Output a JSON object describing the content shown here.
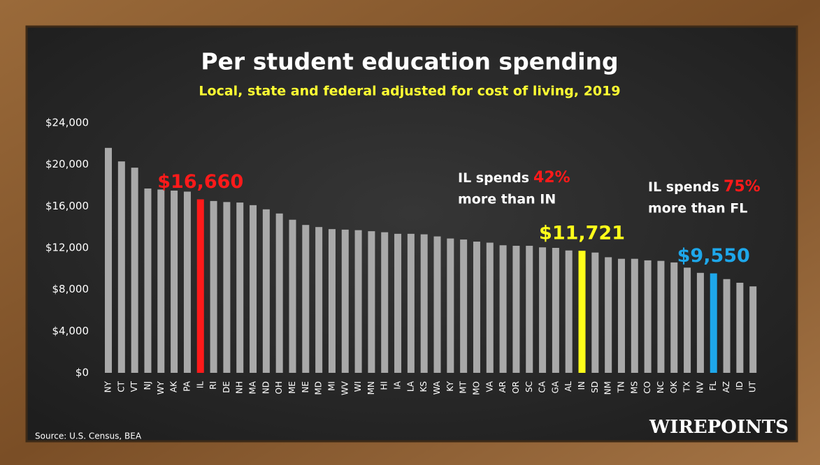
{
  "chart_data": {
    "type": "bar",
    "title": "Per student education spending",
    "subtitle": "Local, state and federal adjusted for cost of living, 2019",
    "categories": [
      "NY",
      "CT",
      "VT",
      "NJ",
      "WY",
      "AK",
      "PA",
      "IL",
      "RI",
      "DE",
      "NH",
      "MA",
      "ND",
      "OH",
      "ME",
      "NE",
      "MD",
      "MI",
      "WV",
      "WI",
      "MN",
      "HI",
      "IA",
      "LA",
      "KS",
      "WA",
      "KY",
      "MT",
      "MO",
      "VA",
      "AR",
      "OR",
      "SC",
      "CA",
      "GA",
      "AL",
      "IN",
      "SD",
      "NM",
      "TN",
      "MS",
      "CO",
      "NC",
      "OK",
      "TX",
      "NV",
      "FL",
      "AZ",
      "ID",
      "UT"
    ],
    "values": [
      21600,
      20300,
      19700,
      17700,
      17600,
      17500,
      17400,
      16660,
      16500,
      16400,
      16350,
      16100,
      15700,
      15300,
      14700,
      14200,
      14000,
      13800,
      13750,
      13700,
      13600,
      13500,
      13350,
      13350,
      13300,
      13100,
      12900,
      12800,
      12600,
      12500,
      12250,
      12200,
      12200,
      12050,
      12000,
      11750,
      11721,
      11550,
      11100,
      10950,
      10950,
      10800,
      10750,
      10600,
      10100,
      9600,
      9550,
      9000,
      8650,
      8300
    ],
    "value_labels": [
      null,
      null,
      null,
      null,
      null,
      null,
      null,
      "$16,660",
      null,
      null,
      null,
      null,
      null,
      null,
      null,
      null,
      null,
      null,
      null,
      null,
      null,
      null,
      null,
      null,
      null,
      null,
      null,
      null,
      null,
      null,
      null,
      null,
      null,
      null,
      null,
      null,
      "$11,721",
      null,
      null,
      null,
      null,
      null,
      null,
      null,
      null,
      null,
      "$9,550",
      null,
      null,
      null
    ],
    "colors": [
      "#a9a9a9",
      "#a9a9a9",
      "#a9a9a9",
      "#a9a9a9",
      "#a9a9a9",
      "#a9a9a9",
      "#a9a9a9",
      "#ff1a1a",
      "#a9a9a9",
      "#a9a9a9",
      "#a9a9a9",
      "#a9a9a9",
      "#a9a9a9",
      "#a9a9a9",
      "#a9a9a9",
      "#a9a9a9",
      "#a9a9a9",
      "#a9a9a9",
      "#a9a9a9",
      "#a9a9a9",
      "#a9a9a9",
      "#a9a9a9",
      "#a9a9a9",
      "#a9a9a9",
      "#a9a9a9",
      "#a9a9a9",
      "#a9a9a9",
      "#a9a9a9",
      "#a9a9a9",
      "#a9a9a9",
      "#a9a9a9",
      "#a9a9a9",
      "#a9a9a9",
      "#a9a9a9",
      "#a9a9a9",
      "#a9a9a9",
      "#ffff1a",
      "#a9a9a9",
      "#a9a9a9",
      "#a9a9a9",
      "#a9a9a9",
      "#a9a9a9",
      "#a9a9a9",
      "#a9a9a9",
      "#a9a9a9",
      "#a9a9a9",
      "#1ea7ea",
      "#a9a9a9",
      "#a9a9a9",
      "#a9a9a9"
    ],
    "ylim": [
      0,
      24000
    ],
    "yticks": [
      {
        "value": 0,
        "label": "$0"
      },
      {
        "value": 4000,
        "label": "$4,000"
      },
      {
        "value": 8000,
        "label": "$8,000"
      },
      {
        "value": 12000,
        "label": "$12,000"
      },
      {
        "value": 16000,
        "label": "$16,000"
      },
      {
        "value": 20000,
        "label": "$20,000"
      },
      {
        "value": 24000,
        "label": "$24,000"
      }
    ],
    "grid": false,
    "annotations": [
      {
        "prefix": "IL spends",
        "highlight": "42%",
        "suffix": "more than IN",
        "highlight_color": "#ff1a1a"
      },
      {
        "prefix": "IL spends",
        "highlight": "75%",
        "suffix": "more than FL",
        "highlight_color": "#ff1a1a"
      }
    ],
    "source": "Source: U.S. Census, BEA",
    "brand": "WIREPOINTS"
  }
}
